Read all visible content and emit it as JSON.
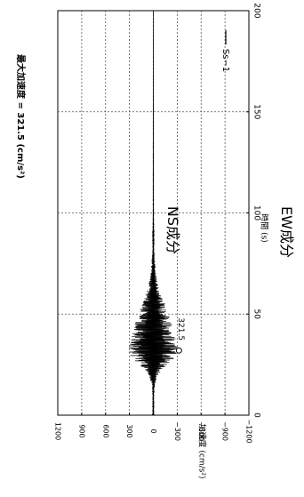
{
  "title": "NS成分",
  "subtitle": "EW成分",
  "max_annotation": "最大加速度 = 321.5 (cm/s²)",
  "chart_data": {
    "type": "line",
    "xlabel": "時間 (s)",
    "ylabel": "加速度 (cm/s²)",
    "xlim": [
      0,
      200
    ],
    "ylim": [
      -1200,
      1200
    ],
    "x_ticks": [
      0,
      50,
      100,
      150,
      200
    ],
    "y_ticks": [
      1200,
      900,
      600,
      300,
      0,
      -300,
      -600,
      -900,
      -1200
    ],
    "x_tick_labels": [
      "0",
      "50",
      "100",
      "150",
      "200"
    ],
    "y_tick_labels": [
      "1200",
      "900",
      "600",
      "300",
      "0",
      "−300",
      "−600",
      "−900",
      "−1200"
    ],
    "grid": true,
    "legend": {
      "position": "top-right",
      "entries": [
        "Ss−1"
      ]
    },
    "series": [
      {
        "name": "Ss−1",
        "color": "#000000",
        "envelope_points": [
          [
            0,
            8
          ],
          [
            5,
            10
          ],
          [
            10,
            12
          ],
          [
            15,
            20
          ],
          [
            20,
            60
          ],
          [
            25,
            180
          ],
          [
            28,
            260
          ],
          [
            30,
            300
          ],
          [
            32,
            321.5
          ],
          [
            35,
            310
          ],
          [
            38,
            290
          ],
          [
            40,
            270
          ],
          [
            42,
            260
          ],
          [
            45,
            240
          ],
          [
            48,
            210
          ],
          [
            50,
            190
          ],
          [
            52,
            170
          ],
          [
            55,
            150
          ],
          [
            58,
            120
          ],
          [
            60,
            100
          ],
          [
            62,
            80
          ],
          [
            65,
            60
          ],
          [
            68,
            45
          ],
          [
            70,
            35
          ],
          [
            75,
            25
          ],
          [
            80,
            15
          ],
          [
            85,
            10
          ],
          [
            90,
            6
          ],
          [
            100,
            3
          ],
          [
            150,
            2
          ],
          [
            200,
            1
          ]
        ],
        "peak": {
          "x": 32,
          "y": 321.5,
          "label": "321.5"
        }
      }
    ]
  }
}
